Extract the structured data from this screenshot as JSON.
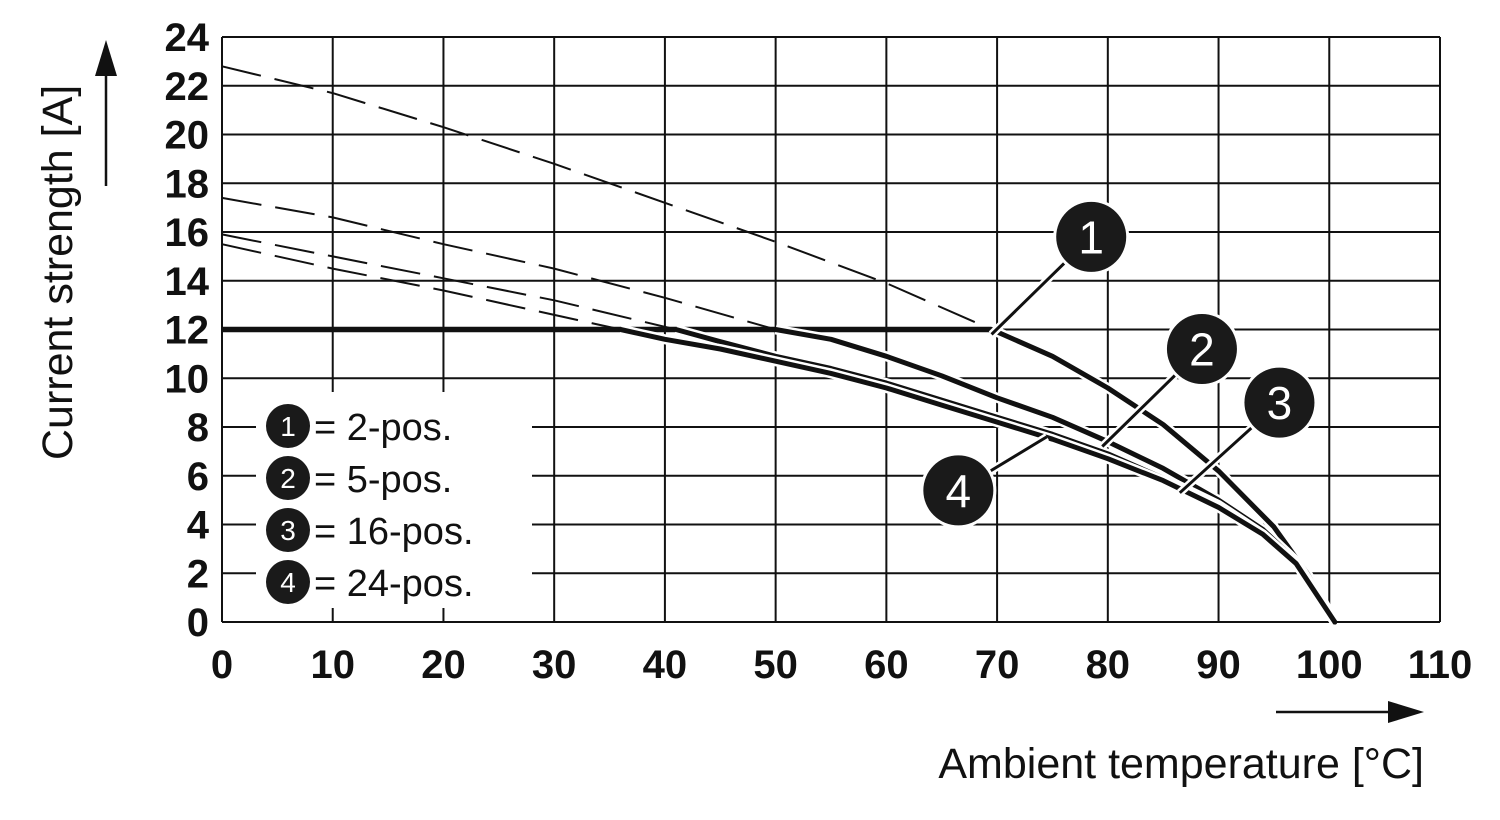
{
  "chart_data": {
    "type": "line",
    "xlabel": "Ambient temperature [°C]",
    "ylabel": "Current strength [A]",
    "xlim": [
      0,
      110
    ],
    "ylim": [
      0,
      24
    ],
    "x_ticks": [
      "0",
      "10",
      "20",
      "30",
      "40",
      "50",
      "60",
      "70",
      "80",
      "90",
      "100",
      "110"
    ],
    "y_ticks": [
      "0",
      "2",
      "4",
      "6",
      "8",
      "10",
      "12",
      "14",
      "16",
      "18",
      "20",
      "22",
      "24"
    ],
    "grid": true,
    "legend_position": "bottom-left",
    "legend": [
      {
        "id": "1",
        "text": "= 2-pos."
      },
      {
        "id": "2",
        "text": "= 5-pos."
      },
      {
        "id": "3",
        "text": "= 16-pos."
      },
      {
        "id": "4",
        "text": "= 24-pos."
      }
    ],
    "limit": {
      "value": 12,
      "x": [
        0,
        69.5
      ]
    },
    "series": [
      {
        "id": "1",
        "points": [
          [
            69.5,
            12
          ],
          [
            75,
            10.9
          ],
          [
            80,
            9.6
          ],
          [
            85,
            8.1
          ],
          [
            90,
            6.2
          ],
          [
            95,
            3.9
          ],
          [
            98,
            2.0
          ],
          [
            100.5,
            0
          ]
        ],
        "extrapolation": [
          [
            0,
            22.8
          ],
          [
            10,
            21.7
          ],
          [
            20,
            20.3
          ],
          [
            30,
            18.8
          ],
          [
            40,
            17.2
          ],
          [
            50,
            15.6
          ],
          [
            60,
            13.9
          ],
          [
            69.5,
            12
          ]
        ]
      },
      {
        "id": "2",
        "points": [
          [
            50,
            12
          ],
          [
            55,
            11.6
          ],
          [
            60,
            10.9
          ],
          [
            65,
            10.1
          ],
          [
            70,
            9.2
          ],
          [
            75,
            8.4
          ],
          [
            80,
            7.4
          ],
          [
            85,
            6.3
          ],
          [
            90,
            5.0
          ],
          [
            94,
            3.8
          ],
          [
            97,
            2.5
          ],
          [
            100.5,
            0
          ]
        ],
        "extrapolation": [
          [
            0,
            17.4
          ],
          [
            10,
            16.6
          ],
          [
            20,
            15.5
          ],
          [
            30,
            14.5
          ],
          [
            40,
            13.3
          ],
          [
            50,
            12
          ]
        ]
      },
      {
        "id": "3",
        "points": [
          [
            41,
            12
          ],
          [
            45,
            11.5
          ],
          [
            50,
            10.9
          ],
          [
            55,
            10.4
          ],
          [
            60,
            9.8
          ],
          [
            65,
            9.1
          ],
          [
            70,
            8.4
          ],
          [
            75,
            7.7
          ],
          [
            80,
            6.9
          ],
          [
            85,
            5.9
          ],
          [
            90,
            4.8
          ],
          [
            94,
            3.6
          ],
          [
            97,
            2.4
          ],
          [
            100.5,
            0
          ]
        ],
        "extrapolation": [
          [
            0,
            15.9
          ],
          [
            10,
            15.0
          ],
          [
            20,
            14.1
          ],
          [
            30,
            13.2
          ],
          [
            41,
            12
          ]
        ]
      },
      {
        "id": "4",
        "points": [
          [
            36,
            12
          ],
          [
            40,
            11.6
          ],
          [
            45,
            11.2
          ],
          [
            50,
            10.7
          ],
          [
            55,
            10.2
          ],
          [
            60,
            9.6
          ],
          [
            65,
            8.9
          ],
          [
            70,
            8.2
          ],
          [
            75,
            7.5
          ],
          [
            80,
            6.7
          ],
          [
            85,
            5.8
          ],
          [
            90,
            4.7
          ],
          [
            94,
            3.6
          ],
          [
            97,
            2.4
          ],
          [
            100.5,
            0
          ]
        ],
        "extrapolation": [
          [
            0,
            15.5
          ],
          [
            10,
            14.5
          ],
          [
            20,
            13.6
          ],
          [
            30,
            12.6
          ],
          [
            36,
            12
          ]
        ]
      }
    ],
    "callouts": [
      {
        "id": "1",
        "anchor": [
          69.5,
          11.8
        ],
        "at": [
          78.5,
          15.8
        ]
      },
      {
        "id": "2",
        "anchor": [
          79.5,
          7.2
        ],
        "at": [
          88.5,
          11.2
        ]
      },
      {
        "id": "3",
        "anchor": [
          86.5,
          5.3
        ],
        "at": [
          95.5,
          9.0
        ]
      },
      {
        "id": "4",
        "anchor": [
          74.5,
          7.6
        ],
        "at": [
          66.5,
          5.4
        ]
      }
    ]
  }
}
